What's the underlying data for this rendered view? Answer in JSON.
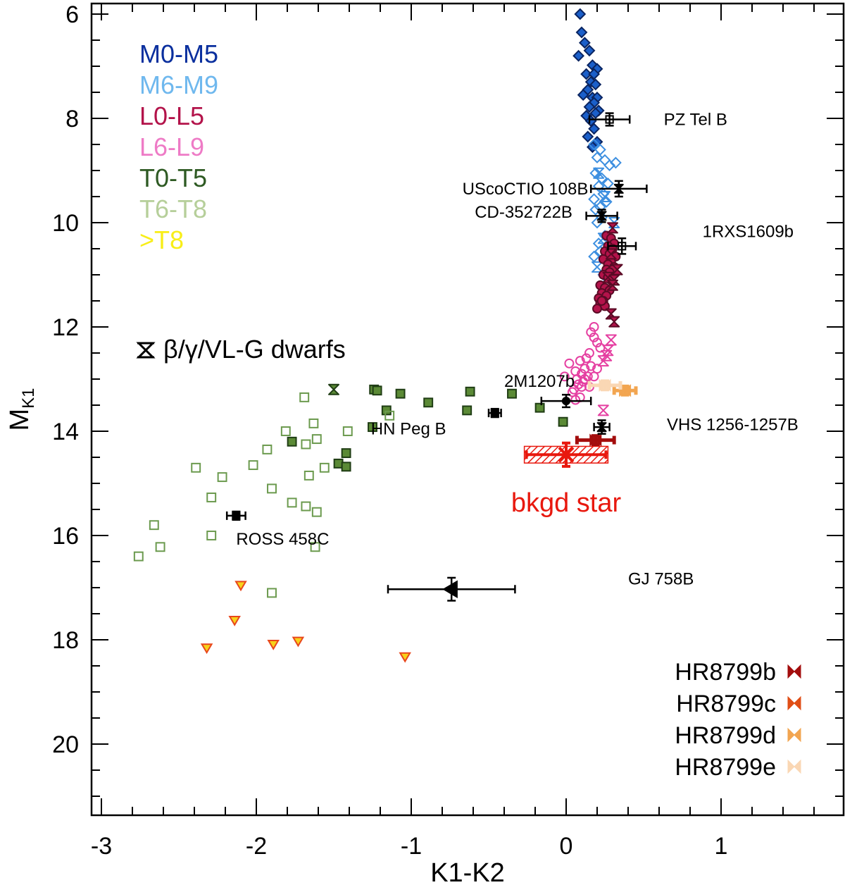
{
  "chart_data": {
    "type": "scatter",
    "title": "",
    "xlabel": "K1-K2",
    "ylabel": "M",
    "ylabel_sub": "K1",
    "xlim": [
      -3.05,
      1.8
    ],
    "ylim": [
      6,
      21.3
    ],
    "y_inverted": true,
    "x_ticks": [
      -3,
      -2,
      -1,
      0,
      1
    ],
    "y_ticks": [
      6,
      8,
      10,
      12,
      14,
      16,
      18,
      20
    ],
    "x_tick_labels": [
      "-3",
      "-2",
      "-1",
      "0",
      "1"
    ],
    "y_tick_labels": [
      "6",
      "8",
      "10",
      "12",
      "14",
      "16",
      "18",
      "20"
    ],
    "legend": [
      {
        "label": "M0-M5",
        "color": "#0a2f9e"
      },
      {
        "label": "M6-M9",
        "color": "#6fb8ee"
      },
      {
        "label": "L0-L5",
        "color": "#b3134a"
      },
      {
        "label": "L6-L9",
        "color": "#ee7bc6"
      },
      {
        "label": "T0-T5",
        "color": "#2e5a23"
      },
      {
        "label": "T6-T8",
        "color": "#b6cf9a"
      },
      {
        "label": ">T8",
        "color": "#f8ee18"
      }
    ],
    "low_gravity_label": "β/γ/VL-G dwarfs",
    "bkgd_label": "bkgd star",
    "bkgd_color": "#e8180e",
    "hr_planets": [
      {
        "name": "HR8799b",
        "color": "#a30d0d"
      },
      {
        "name": "HR8799c",
        "color": "#e04e16"
      },
      {
        "name": "HR8799d",
        "color": "#f2a550"
      },
      {
        "name": "HR8799e",
        "color": "#fad7b4"
      }
    ],
    "series": [
      {
        "name": "M0-M5",
        "marker": "diamond",
        "fill": "#1b5fc9",
        "stroke": "#0a2460",
        "x": [
          0.09,
          0.1,
          0.12,
          0.15,
          0.08,
          0.17,
          0.2,
          0.13,
          0.18,
          0.16,
          0.19,
          0.14,
          0.11,
          0.17,
          0.2,
          0.18,
          0.15,
          0.21,
          0.19,
          0.13,
          0.16,
          0.18,
          0.14,
          0.2,
          0.17
        ],
        "y": [
          6.0,
          6.35,
          6.55,
          6.7,
          6.8,
          6.98,
          7.05,
          7.15,
          7.15,
          7.3,
          7.35,
          7.45,
          7.55,
          7.6,
          7.6,
          7.7,
          7.78,
          7.85,
          7.9,
          7.95,
          8.05,
          8.2,
          8.35,
          8.45,
          8.55
        ]
      },
      {
        "name": "M6-M9",
        "marker": "diamond-open",
        "fill": "none",
        "stroke": "#3d8fe0",
        "x": [
          0.18,
          0.22,
          0.2,
          0.25,
          0.28,
          0.32,
          0.19,
          0.23,
          0.27,
          0.21,
          0.24,
          0.18,
          0.26,
          0.22,
          0.19,
          0.23,
          0.2,
          0.25,
          0.21,
          0.22,
          0.18,
          0.24
        ],
        "y": [
          8.5,
          8.6,
          8.75,
          8.8,
          8.9,
          8.85,
          9.05,
          9.15,
          9.25,
          9.3,
          9.45,
          9.55,
          9.6,
          9.7,
          9.75,
          9.9,
          10.0,
          10.25,
          10.4,
          10.55,
          10.65,
          11.0
        ]
      },
      {
        "name": "M6-M9 low-g",
        "marker": "hourglass-open",
        "fill": "none",
        "stroke": "#3d8fe0",
        "x": [
          0.21,
          0.25,
          0.31,
          0.24,
          0.2
        ],
        "y": [
          9.05,
          9.5,
          10.0,
          10.3,
          10.85
        ]
      },
      {
        "name": "L0-L5",
        "marker": "circle",
        "fill": "#b3134a",
        "stroke": "#5a0a25",
        "x": [
          0.26,
          0.29,
          0.31,
          0.27,
          0.3,
          0.25,
          0.28,
          0.32,
          0.24,
          0.29,
          0.27,
          0.31,
          0.26,
          0.3,
          0.28,
          0.24,
          0.27,
          0.29,
          0.22,
          0.25,
          0.28,
          0.23,
          0.26,
          0.21,
          0.24,
          0.22,
          0.25,
          0.2,
          0.23
        ],
        "y": [
          10.25,
          10.3,
          10.4,
          10.45,
          10.5,
          10.55,
          10.6,
          10.65,
          10.7,
          10.75,
          10.8,
          10.85,
          10.9,
          10.9,
          10.95,
          11.0,
          11.05,
          11.1,
          11.2,
          11.25,
          11.3,
          11.35,
          11.4,
          11.45,
          11.5,
          11.55,
          11.6,
          11.65,
          11.5
        ]
      },
      {
        "name": "L0-L5 low-g",
        "marker": "hourglass",
        "fill": "#b3134a",
        "stroke": "#5a0a25",
        "x": [
          0.3,
          0.29,
          0.33,
          0.27,
          0.31,
          0.3,
          0.29,
          0.31
        ],
        "y": [
          10.1,
          10.6,
          10.9,
          11.05,
          11.1,
          11.2,
          11.75,
          11.9
        ]
      },
      {
        "name": "L6-L9",
        "marker": "circle-open",
        "fill": "none",
        "stroke": "#e53fa1",
        "x": [
          0.18,
          0.16,
          0.18,
          0.2,
          0.22,
          0.15,
          0.13,
          0.09,
          0.16,
          0.12,
          0.2,
          0.06,
          0.1,
          0.14,
          0.18,
          0.07,
          0.11,
          0.08,
          0.15,
          0.05,
          0.04,
          0.09,
          0.02,
          0.12,
          0.06,
          0.1,
          -0.01
        ],
        "y": [
          12.0,
          12.1,
          12.2,
          12.3,
          12.4,
          12.5,
          12.6,
          12.65,
          12.75,
          12.8,
          12.8,
          12.85,
          12.9,
          12.95,
          12.95,
          13.0,
          13.05,
          13.1,
          13.15,
          13.2,
          13.25,
          13.35,
          12.7,
          13.0,
          13.4,
          13.15,
          12.95
        ]
      },
      {
        "name": "L6-L9 low-g",
        "marker": "hourglass-open",
        "fill": "none",
        "stroke": "#e53fa1",
        "x": [
          0.29,
          0.27,
          0.26,
          0.24,
          0.24
        ],
        "y": [
          12.25,
          12.45,
          12.55,
          12.65,
          13.6
        ]
      },
      {
        "name": "T0-T5",
        "marker": "square",
        "fill": "#5b8a36",
        "stroke": "#1f3d14",
        "x": [
          -1.24,
          -1.22,
          -1.07,
          -0.89,
          -0.62,
          -0.35,
          -1.16,
          -1.25,
          -0.17,
          -0.64,
          -0.02,
          -1.77,
          -1.42,
          -1.47,
          -1.42
        ],
        "y": [
          13.2,
          13.22,
          13.28,
          13.45,
          13.24,
          13.28,
          13.6,
          13.92,
          13.55,
          13.6,
          13.82,
          14.2,
          14.42,
          14.62,
          14.68
        ]
      },
      {
        "name": "T0-T5 low-g",
        "marker": "hourglass",
        "fill": "#5b8a36",
        "stroke": "#1f3d14",
        "x": [
          -1.5
        ],
        "y": [
          13.2
        ]
      },
      {
        "name": "T6-T8",
        "marker": "square-open",
        "fill": "none",
        "stroke": "#6b9a4e",
        "x": [
          -1.69,
          -1.14,
          -1.63,
          -1.41,
          -1.81,
          -1.68,
          -1.61,
          -1.93,
          -2.02,
          -2.22,
          -1.56,
          -1.66,
          -2.39,
          -1.9,
          -2.29,
          -1.77,
          -1.68,
          -1.61,
          -2.66,
          -2.29,
          -2.62,
          -1.62,
          -2.76,
          -1.9
        ],
        "y": [
          13.35,
          13.7,
          13.85,
          14.0,
          14.0,
          14.25,
          14.15,
          14.35,
          14.65,
          14.88,
          14.7,
          14.85,
          14.7,
          15.1,
          15.27,
          15.37,
          15.44,
          15.55,
          15.8,
          16.0,
          16.22,
          16.22,
          16.4,
          17.1
        ]
      },
      {
        "name": ">T8",
        "marker": "triangle-down",
        "fill": "#f7d21a",
        "stroke": "#e8471c",
        "x": [
          -2.1,
          -2.14,
          -2.32,
          -1.89,
          -1.73,
          -1.04
        ],
        "y": [
          16.95,
          17.62,
          18.15,
          18.08,
          18.02,
          18.32
        ]
      }
    ],
    "annotated_objects": [
      {
        "name": "PZ Tel B",
        "x": 0.28,
        "y": 8.02,
        "xerr": 0.13,
        "yerr": 0.12,
        "marker": "square-open",
        "label_dx": 0.35,
        "label_dy": 0
      },
      {
        "name": "UScoCTIO 108B",
        "x": 0.34,
        "y": 9.35,
        "xerr": 0.18,
        "yerr": 0.15,
        "marker": "hourglass",
        "label_dx": -1.01,
        "label_dy": 0
      },
      {
        "name": "CD-352722B",
        "x": 0.23,
        "y": 9.87,
        "xerr": 0.1,
        "yerr": 0.12,
        "marker": "hourglass",
        "label_dx": -0.82,
        "label_dy": -0.07
      },
      {
        "name": "1RXS1609b",
        "x": 0.36,
        "y": 10.45,
        "xerr": 0.09,
        "yerr": 0.15,
        "marker": "square-open",
        "label_dx": 0.52,
        "label_dy": -0.28
      },
      {
        "name": "2M1207b",
        "x": 0.0,
        "y": 13.42,
        "xerr": 0.16,
        "yerr": 0.12,
        "marker": "circle",
        "label_dx": -0.4,
        "label_dy": -0.38
      },
      {
        "name": "HN Peg B",
        "x": -0.46,
        "y": 13.65,
        "xerr": 0.04,
        "yerr": 0.08,
        "marker": "square",
        "label_dx": -0.8,
        "label_dy": 0.3
      },
      {
        "name": "VHS 1256-1257B",
        "x": 0.23,
        "y": 13.92,
        "xerr": 0.05,
        "yerr": 0.13,
        "marker": "hourglass",
        "label_dx": 0.42,
        "label_dy": -0.05
      },
      {
        "name": "ROSS 458C",
        "x": -2.13,
        "y": 15.62,
        "xerr": 0.06,
        "yerr": 0.08,
        "marker": "square",
        "label_dx": 0.0,
        "label_dy": 0.45
      },
      {
        "name": "GJ 758B",
        "x": -0.74,
        "y": 17.03,
        "xerr": 0.41,
        "yerr": 0.22,
        "marker": "triangle-left",
        "label_dx": 1.14,
        "label_dy": -0.2
      }
    ],
    "hr8799_points": [
      {
        "name": "HR8799b",
        "x": 0.19,
        "y": 14.17,
        "xerr": 0.12,
        "yerr": 0.08
      },
      {
        "name": "HR8799d",
        "x": 0.38,
        "y": 13.22,
        "xerr": 0.07,
        "yerr": 0.08
      },
      {
        "name": "HR8799e",
        "x": 0.25,
        "y": 13.12,
        "xerr": 0.1,
        "yerr": 0.08
      }
    ],
    "bkgd_point": {
      "x": 0.0,
      "y": 14.45,
      "xerr": 0.27,
      "yerr": 0.16
    }
  }
}
